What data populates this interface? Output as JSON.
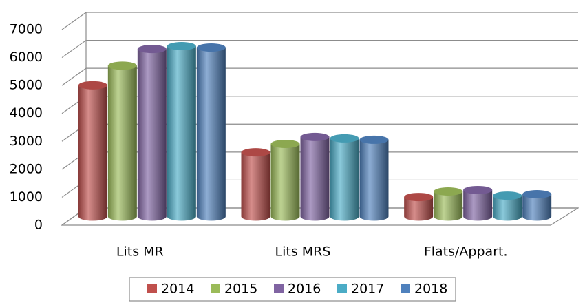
{
  "chart_data": {
    "type": "bar3d",
    "categories": [
      "Lits MR",
      "Lits MRS",
      "Flats/Appart."
    ],
    "series": [
      {
        "name": "2014",
        "color": "#c0504d",
        "values": [
          4700,
          2300,
          700
        ]
      },
      {
        "name": "2015",
        "color": "#9bbb59",
        "values": [
          5400,
          2600,
          900
        ]
      },
      {
        "name": "2016",
        "color": "#8064a2",
        "values": [
          6000,
          2850,
          950
        ]
      },
      {
        "name": "2017",
        "color": "#4bacc6",
        "values": [
          6100,
          2800,
          750
        ]
      },
      {
        "name": "2018",
        "color": "#4f81bd",
        "values": [
          6050,
          2750,
          800
        ]
      }
    ],
    "ylim": [
      0,
      7000
    ],
    "yticks": [
      0,
      1000,
      2000,
      3000,
      4000,
      5000,
      6000,
      7000
    ],
    "grid": true,
    "legend": "bottom"
  }
}
